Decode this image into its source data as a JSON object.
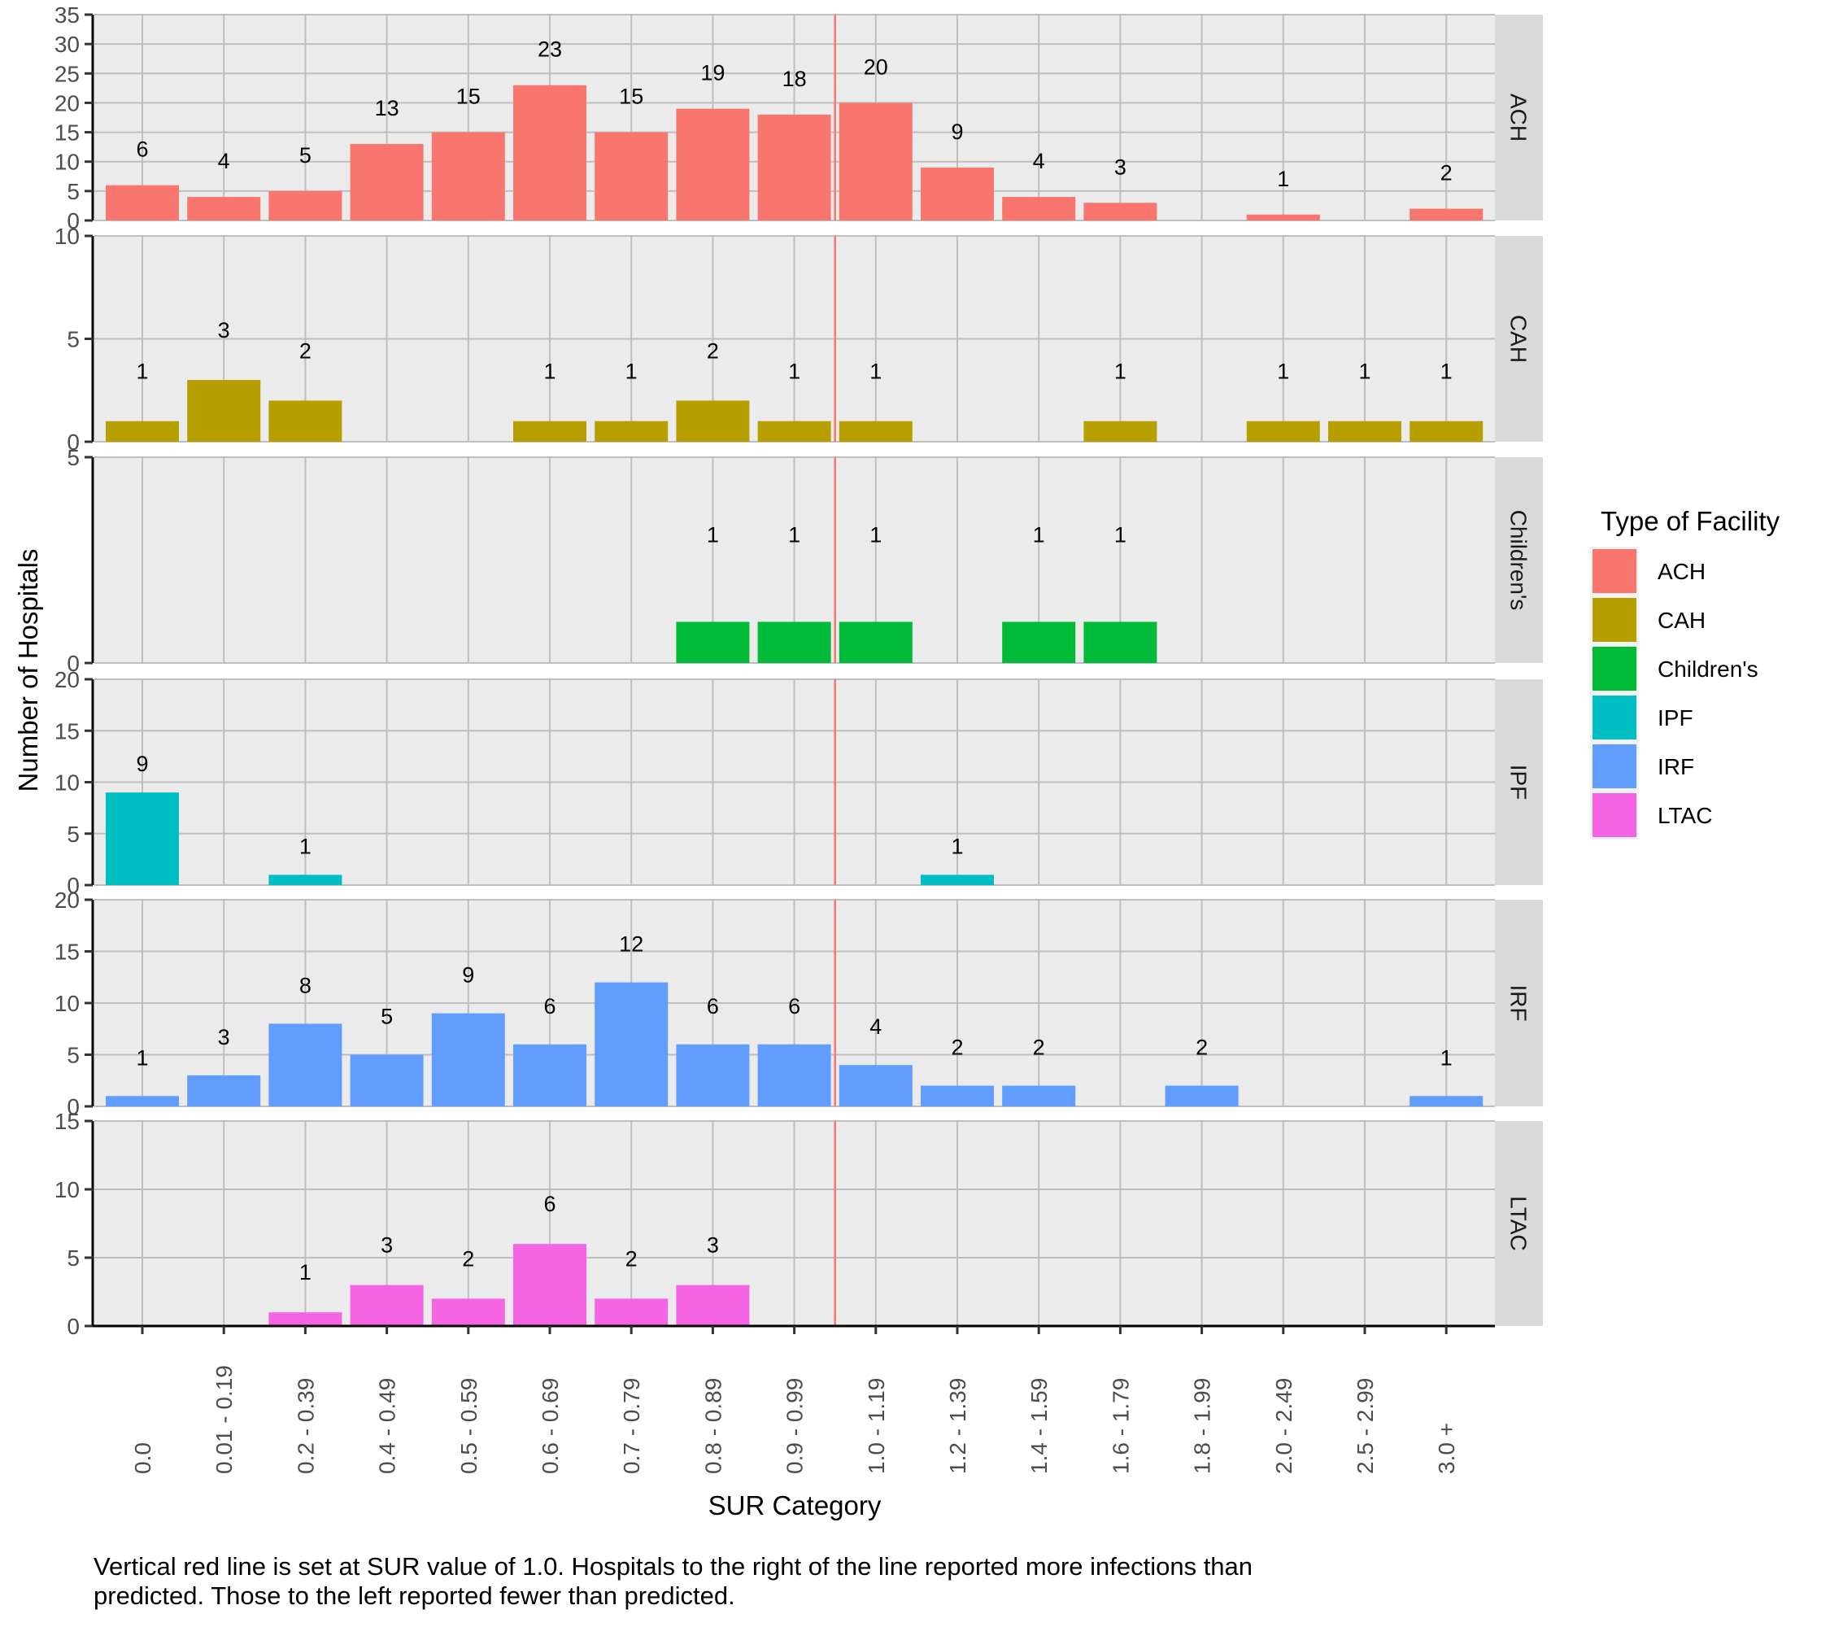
{
  "chart_data": {
    "type": "bar",
    "layout": "faceted-rows",
    "xlabel": "SUR Category",
    "ylabel": "Number of Hospitals",
    "categories": [
      "0.0",
      "0.01 - 0.19",
      "0.2 - 0.39",
      "0.4 - 0.49",
      "0.5 - 0.59",
      "0.6 - 0.69",
      "0.7 - 0.79",
      "0.8 - 0.89",
      "0.9 - 0.99",
      "1.0 - 1.19",
      "1.2 - 1.39",
      "1.4 - 1.59",
      "1.6 - 1.79",
      "1.8 - 1.99",
      "2.0 - 2.49",
      "2.5 - 2.99",
      "3.0  +"
    ],
    "reference_line": {
      "orientation": "vertical",
      "between_categories": [
        "0.9 - 0.99",
        "1.0 - 1.19"
      ],
      "sur_value": 1.0,
      "color": "#F8766D"
    },
    "grid": true,
    "legend": {
      "title": "Type of Facility",
      "position": "right",
      "entries": [
        {
          "label": "ACH",
          "color": "#F8766D"
        },
        {
          "label": "CAH",
          "color": "#B79F00"
        },
        {
          "label": "Children's",
          "color": "#00BA38"
        },
        {
          "label": "IPF",
          "color": "#00BFC4"
        },
        {
          "label": "IRF",
          "color": "#619CFF"
        },
        {
          "label": "LTAC",
          "color": "#F564E3"
        }
      ]
    },
    "series": [
      {
        "name": "ACH",
        "color": "#F8766D",
        "ylim": [
          0,
          35
        ],
        "yticks": [
          0,
          5,
          10,
          15,
          20,
          25,
          30,
          35
        ],
        "values": [
          6,
          4,
          5,
          13,
          15,
          23,
          15,
          19,
          18,
          20,
          9,
          4,
          3,
          0,
          1,
          0,
          2
        ]
      },
      {
        "name": "CAH",
        "color": "#B79F00",
        "ylim": [
          0,
          10
        ],
        "yticks": [
          0,
          5,
          10
        ],
        "values": [
          1,
          3,
          2,
          0,
          0,
          1,
          1,
          2,
          1,
          1,
          0,
          0,
          1,
          0,
          1,
          1,
          1
        ]
      },
      {
        "name": "Children's",
        "color": "#00BA38",
        "ylim": [
          0,
          5
        ],
        "yticks": [
          0,
          5
        ],
        "values": [
          0,
          0,
          0,
          0,
          0,
          0,
          0,
          1,
          1,
          1,
          0,
          1,
          1,
          0,
          0,
          0,
          0
        ]
      },
      {
        "name": "IPF",
        "color": "#00BFC4",
        "ylim": [
          0,
          20
        ],
        "yticks": [
          0,
          5,
          10,
          15,
          20
        ],
        "values": [
          9,
          0,
          1,
          0,
          0,
          0,
          0,
          0,
          0,
          0,
          1,
          0,
          0,
          0,
          0,
          0,
          0
        ]
      },
      {
        "name": "IRF",
        "color": "#619CFF",
        "ylim": [
          0,
          20
        ],
        "yticks": [
          0,
          5,
          10,
          15,
          20
        ],
        "values": [
          1,
          3,
          8,
          5,
          9,
          6,
          12,
          6,
          6,
          4,
          2,
          2,
          0,
          2,
          0,
          0,
          1
        ]
      },
      {
        "name": "LTAC",
        "color": "#F564E3",
        "ylim": [
          0,
          15
        ],
        "yticks": [
          0,
          5,
          10,
          15
        ],
        "values": [
          0,
          0,
          1,
          3,
          2,
          6,
          2,
          3,
          0,
          0,
          0,
          0,
          0,
          0,
          0,
          0,
          0
        ]
      }
    ],
    "caption": "Vertical red line is set at SUR value of 1.0.  Hospitals to the right of the line reported more infections than predicted. Those to the left reported fewer than predicted."
  },
  "footnote": {
    "line1": "Vertical red line is set at SUR value of 1.0.  Hospitals to the right of the line reported more infections than",
    "line2": "predicted. Those to the left reported fewer than predicted."
  },
  "colors": {
    "panel_background": "#EBEBEB",
    "grid": "#BEBEBE",
    "strip_background": "#D9D9D9",
    "axis": "#000000"
  }
}
